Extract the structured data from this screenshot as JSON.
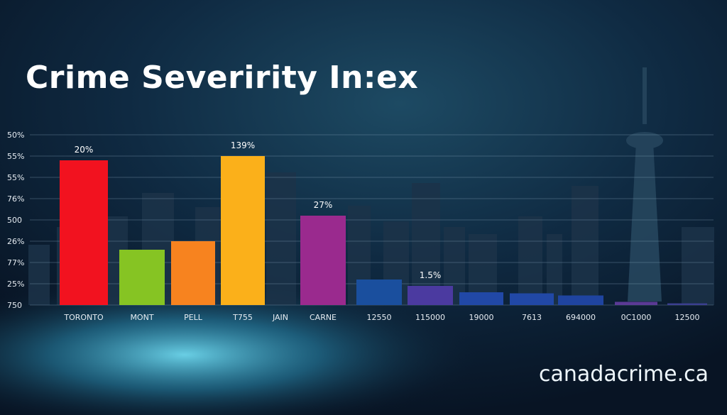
{
  "title": "Crime Severirity In:ex",
  "watermark": "canadacrime.ca",
  "chart_data": {
    "type": "bar",
    "title": "Crime Severirity In:ex",
    "xlabel": "",
    "ylabel": "",
    "y_tick_labels": [
      "50%",
      "55%",
      "55%",
      "76%",
      "500",
      "26%",
      "77%",
      "25%",
      "750"
    ],
    "grid": true,
    "categories": [
      "TORONTO",
      "MONT",
      "PELL",
      "T755",
      "JAIN",
      "CARNE",
      "12550",
      "115000",
      "19000",
      "7613",
      "694000",
      "0C1000",
      "12500"
    ],
    "values": [
      6.8,
      2.6,
      3.0,
      7.0,
      0,
      4.2,
      1.2,
      0.9,
      0.6,
      0.55,
      0.45,
      0.15,
      0.08
    ],
    "ylim": [
      0,
      8
    ],
    "data_labels": [
      "20%",
      "",
      "",
      "139%",
      "",
      "27%",
      "",
      "1.5%",
      "",
      "",
      "",
      "",
      ""
    ],
    "colors": [
      "#f2121f",
      "#86c423",
      "#f7831f",
      "#fbb01a",
      "#1a2a44",
      "#9a2a8e",
      "#1a4f9e",
      "#4b3aa0",
      "#2148a6",
      "#2148a6",
      "#1f44a0",
      "#5b3a95",
      "#3b3f90"
    ]
  }
}
